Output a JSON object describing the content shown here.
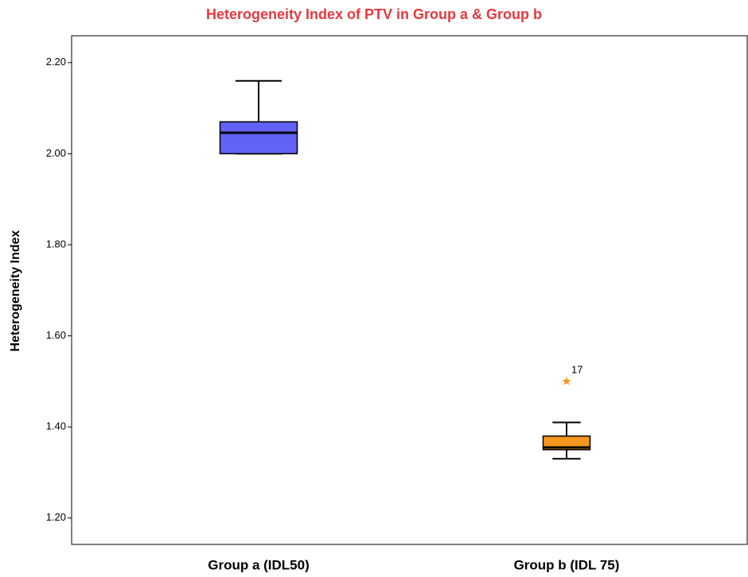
{
  "chart_data": {
    "type": "box",
    "title": "Heterogeneity Index of PTV in Group a & Group b",
    "title_color": "#e8383d",
    "y_label": "Heterogeneity Index",
    "categories": [
      "Group a (IDL50)",
      "Group b (IDL 75)"
    ],
    "boxes": [
      {
        "min": 2.0,
        "q1": 2.0,
        "median": 2.046,
        "q3": 2.07,
        "max": 2.16,
        "color": "#6262f7",
        "outliers": [],
        "outlier_labels": []
      },
      {
        "min": 1.33,
        "q1": 1.35,
        "median": 1.355,
        "q3": 1.38,
        "max": 1.41,
        "color": "#f5961e",
        "outliers": [
          1.5
        ],
        "outlier_labels": [
          "17"
        ]
      }
    ],
    "outlier_color": "#f5961e",
    "ylim": [
      1.142,
      2.259
    ],
    "yticks": [
      {
        "value": 1.2,
        "label": "1.20"
      },
      {
        "value": 1.4,
        "label": "1.40"
      },
      {
        "value": 1.6,
        "label": "1.60"
      },
      {
        "value": 1.8,
        "label": "1.80"
      },
      {
        "value": 2.0,
        "label": "2.00"
      },
      {
        "value": 2.2,
        "label": "2.20"
      }
    ]
  }
}
